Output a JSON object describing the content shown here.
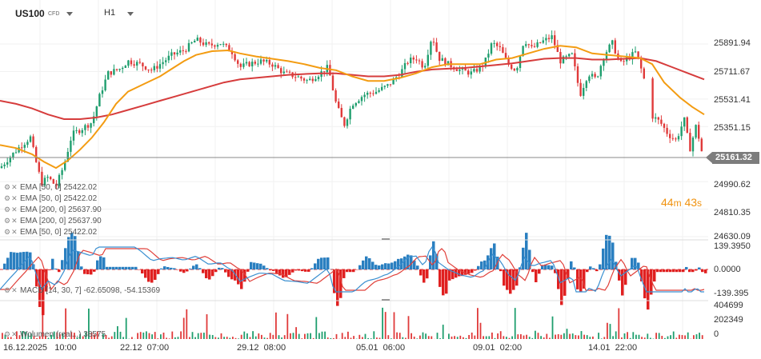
{
  "header": {
    "symbol": "US100",
    "instrument_type": "CFD",
    "timeframe": "H1"
  },
  "indicators": [
    {
      "label": "EMA [50, 0]  25422.02"
    },
    {
      "label": "EMA [50, 0]  25422.02"
    },
    {
      "label": "EMA [200, 0]  25637.90"
    },
    {
      "label": "EMA [200, 0]  25637.90"
    },
    {
      "label": "EMA [50, 0]  25422.02"
    }
  ],
  "macd_label": "MACD [14, 30, 7] -62.65098,  -54.15369",
  "volume_label": "Wolumen (real...)  38575",
  "timer": {
    "minutes": "44",
    "m": "m",
    "seconds": "43",
    "s": "s"
  },
  "price_axis": [
    "25891.94",
    "25711.67",
    "25531.41",
    "25351.15",
    "24990.62",
    "24810.35",
    "24630.09"
  ],
  "current_price": "25161.32",
  "macd_axis": [
    "139.3950",
    "0.0000",
    "-139.395"
  ],
  "volume_axis": [
    "404699",
    "202349",
    "0"
  ],
  "x_axis": [
    "16.12.2025   10:00",
    "22.12  07:00",
    "29.12  08:00",
    "05.01  06:00",
    "09.01  02:00",
    "14.01  22:00"
  ],
  "colors": {
    "up": "#1f9e6e",
    "down": "#e03a3a",
    "ema_fast": "#f39c12",
    "ema_slow": "#d63c3c",
    "macd_line": "#3a8fd0",
    "signal_line": "#e0403a",
    "hist_pos": "#2a7fc0",
    "hist_neg": "#e02020"
  },
  "chart_data": {
    "type": "candlestick",
    "y_range": [
      24630.09,
      25891.94
    ],
    "current": 25161.32,
    "close_path": [
      [
        0,
        25080
      ],
      [
        12,
        25150
      ],
      [
        25,
        25220
      ],
      [
        38,
        25280
      ],
      [
        45,
        25120
      ],
      [
        52,
        24980
      ],
      [
        60,
        25020
      ],
      [
        70,
        24960
      ],
      [
        80,
        25100
      ],
      [
        90,
        25300
      ],
      [
        100,
        25330
      ],
      [
        115,
        25380
      ],
      [
        125,
        25560
      ],
      [
        135,
        25700
      ],
      [
        150,
        25730
      ],
      [
        160,
        25780
      ],
      [
        175,
        25760
      ],
      [
        190,
        25720
      ],
      [
        200,
        25760
      ],
      [
        215,
        25820
      ],
      [
        230,
        25850
      ],
      [
        245,
        25920
      ],
      [
        260,
        25880
      ],
      [
        275,
        25900
      ],
      [
        290,
        25840
      ],
      [
        300,
        25740
      ],
      [
        310,
        25760
      ],
      [
        325,
        25780
      ],
      [
        340,
        25760
      ],
      [
        355,
        25700
      ],
      [
        370,
        25680
      ],
      [
        385,
        25650
      ],
      [
        400,
        25700
      ],
      [
        410,
        25740
      ],
      [
        420,
        25500
      ],
      [
        430,
        25360
      ],
      [
        440,
        25500
      ],
      [
        455,
        25560
      ],
      [
        470,
        25580
      ],
      [
        485,
        25620
      ],
      [
        500,
        25700
      ],
      [
        510,
        25780
      ],
      [
        520,
        25800
      ],
      [
        530,
        25740
      ],
      [
        540,
        25950
      ],
      [
        548,
        25800
      ],
      [
        560,
        25760
      ],
      [
        575,
        25720
      ],
      [
        590,
        25700
      ],
      [
        605,
        25760
      ],
      [
        615,
        25900
      ],
      [
        625,
        25860
      ],
      [
        635,
        25760
      ],
      [
        645,
        25720
      ],
      [
        655,
        25920
      ],
      [
        665,
        25860
      ],
      [
        675,
        25900
      ],
      [
        690,
        25940
      ],
      [
        700,
        25780
      ],
      [
        715,
        25820
      ],
      [
        725,
        25560
      ],
      [
        735,
        25700
      ],
      [
        745,
        25660
      ],
      [
        755,
        25820
      ],
      [
        765,
        25900
      ],
      [
        775,
        25760
      ],
      [
        785,
        25800
      ],
      [
        795,
        25840
      ],
      [
        805,
        25660
      ],
      [
        815,
        25420
      ],
      [
        825,
        25380
      ],
      [
        835,
        25300
      ],
      [
        845,
        25260
      ],
      [
        855,
        25400
      ],
      [
        862,
        25200
      ],
      [
        870,
        25360
      ],
      [
        878,
        25160
      ]
    ],
    "ema_fast_path": [
      [
        0,
        25230
      ],
      [
        20,
        25210
      ],
      [
        40,
        25170
      ],
      [
        55,
        25120
      ],
      [
        70,
        25080
      ],
      [
        85,
        25130
      ],
      [
        100,
        25200
      ],
      [
        115,
        25280
      ],
      [
        130,
        25380
      ],
      [
        145,
        25500
      ],
      [
        160,
        25580
      ],
      [
        180,
        25630
      ],
      [
        200,
        25680
      ],
      [
        215,
        25730
      ],
      [
        230,
        25780
      ],
      [
        245,
        25820
      ],
      [
        265,
        25845
      ],
      [
        285,
        25850
      ],
      [
        300,
        25830
      ],
      [
        320,
        25810
      ],
      [
        340,
        25795
      ],
      [
        360,
        25780
      ],
      [
        380,
        25760
      ],
      [
        400,
        25735
      ],
      [
        420,
        25720
      ],
      [
        440,
        25680
      ],
      [
        460,
        25650
      ],
      [
        480,
        25650
      ],
      [
        500,
        25670
      ],
      [
        520,
        25700
      ],
      [
        540,
        25740
      ],
      [
        560,
        25760
      ],
      [
        580,
        25760
      ],
      [
        600,
        25760
      ],
      [
        620,
        25790
      ],
      [
        640,
        25800
      ],
      [
        660,
        25830
      ],
      [
        680,
        25860
      ],
      [
        700,
        25880
      ],
      [
        720,
        25870
      ],
      [
        740,
        25830
      ],
      [
        760,
        25820
      ],
      [
        780,
        25810
      ],
      [
        800,
        25800
      ],
      [
        815,
        25760
      ],
      [
        830,
        25640
      ],
      [
        850,
        25540
      ],
      [
        865,
        25480
      ],
      [
        880,
        25430
      ]
    ],
    "ema_slow_path": [
      [
        0,
        25520
      ],
      [
        20,
        25500
      ],
      [
        40,
        25470
      ],
      [
        60,
        25430
      ],
      [
        80,
        25400
      ],
      [
        100,
        25400
      ],
      [
        120,
        25410
      ],
      [
        140,
        25430
      ],
      [
        160,
        25460
      ],
      [
        180,
        25490
      ],
      [
        200,
        25520
      ],
      [
        220,
        25550
      ],
      [
        240,
        25580
      ],
      [
        260,
        25610
      ],
      [
        280,
        25640
      ],
      [
        300,
        25660
      ],
      [
        320,
        25670
      ],
      [
        340,
        25680
      ],
      [
        360,
        25690
      ],
      [
        380,
        25695
      ],
      [
        400,
        25700
      ],
      [
        420,
        25700
      ],
      [
        440,
        25690
      ],
      [
        460,
        25680
      ],
      [
        480,
        25680
      ],
      [
        500,
        25690
      ],
      [
        520,
        25710
      ],
      [
        540,
        25725
      ],
      [
        560,
        25730
      ],
      [
        580,
        25735
      ],
      [
        600,
        25745
      ],
      [
        620,
        25755
      ],
      [
        640,
        25765
      ],
      [
        660,
        25780
      ],
      [
        680,
        25795
      ],
      [
        700,
        25800
      ],
      [
        720,
        25800
      ],
      [
        740,
        25790
      ],
      [
        760,
        25790
      ],
      [
        780,
        25795
      ],
      [
        800,
        25800
      ],
      [
        820,
        25780
      ],
      [
        840,
        25740
      ],
      [
        860,
        25700
      ],
      [
        880,
        25660
      ]
    ]
  }
}
